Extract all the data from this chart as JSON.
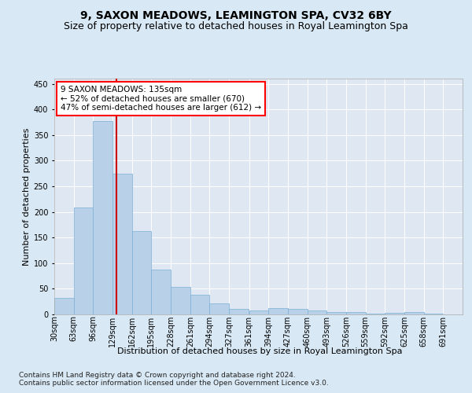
{
  "title": "9, SAXON MEADOWS, LEAMINGTON SPA, CV32 6BY",
  "subtitle": "Size of property relative to detached houses in Royal Leamington Spa",
  "xlabel": "Distribution of detached houses by size in Royal Leamington Spa",
  "ylabel": "Number of detached properties",
  "footer_line1": "Contains HM Land Registry data © Crown copyright and database right 2024.",
  "footer_line2": "Contains public sector information licensed under the Open Government Licence v3.0.",
  "annotation_line1": "9 SAXON MEADOWS: 135sqm",
  "annotation_line2": "← 52% of detached houses are smaller (670)",
  "annotation_line3": "47% of semi-detached houses are larger (612) →",
  "property_size": 135,
  "bar_left_edges": [
    30,
    63,
    96,
    129,
    162,
    195,
    228,
    261,
    294,
    327,
    361,
    394,
    427,
    460,
    493,
    526,
    559,
    592,
    625,
    658
  ],
  "bar_values": [
    32,
    209,
    377,
    274,
    162,
    88,
    53,
    39,
    22,
    10,
    7,
    13,
    10,
    8,
    4,
    5,
    1,
    3,
    4,
    2
  ],
  "bin_width": 33,
  "xlim_left": 30,
  "xlim_right": 724,
  "ylim_top": 460,
  "yticks": [
    0,
    50,
    100,
    150,
    200,
    250,
    300,
    350,
    400,
    450
  ],
  "tick_labels": [
    "30sqm",
    "63sqm",
    "96sqm",
    "129sqm",
    "162sqm",
    "195sqm",
    "228sqm",
    "261sqm",
    "294sqm",
    "327sqm",
    "361sqm",
    "394sqm",
    "427sqm",
    "460sqm",
    "493sqm",
    "526sqm",
    "559sqm",
    "592sqm",
    "625sqm",
    "658sqm",
    "691sqm"
  ],
  "tick_positions": [
    30,
    63,
    96,
    129,
    162,
    195,
    228,
    261,
    294,
    327,
    361,
    394,
    427,
    460,
    493,
    526,
    559,
    592,
    625,
    658,
    691
  ],
  "bar_color": "#b8d0e8",
  "bar_edge_color": "#7aafd4",
  "vline_color": "#cc0000",
  "background_color": "#d8e8f4",
  "plot_bg_color": "#dfe8f2",
  "grid_color": "#ffffff",
  "title_fontsize": 10,
  "subtitle_fontsize": 9,
  "axis_label_fontsize": 8,
  "tick_fontsize": 7,
  "annotation_fontsize": 7.5,
  "footer_fontsize": 6.5
}
